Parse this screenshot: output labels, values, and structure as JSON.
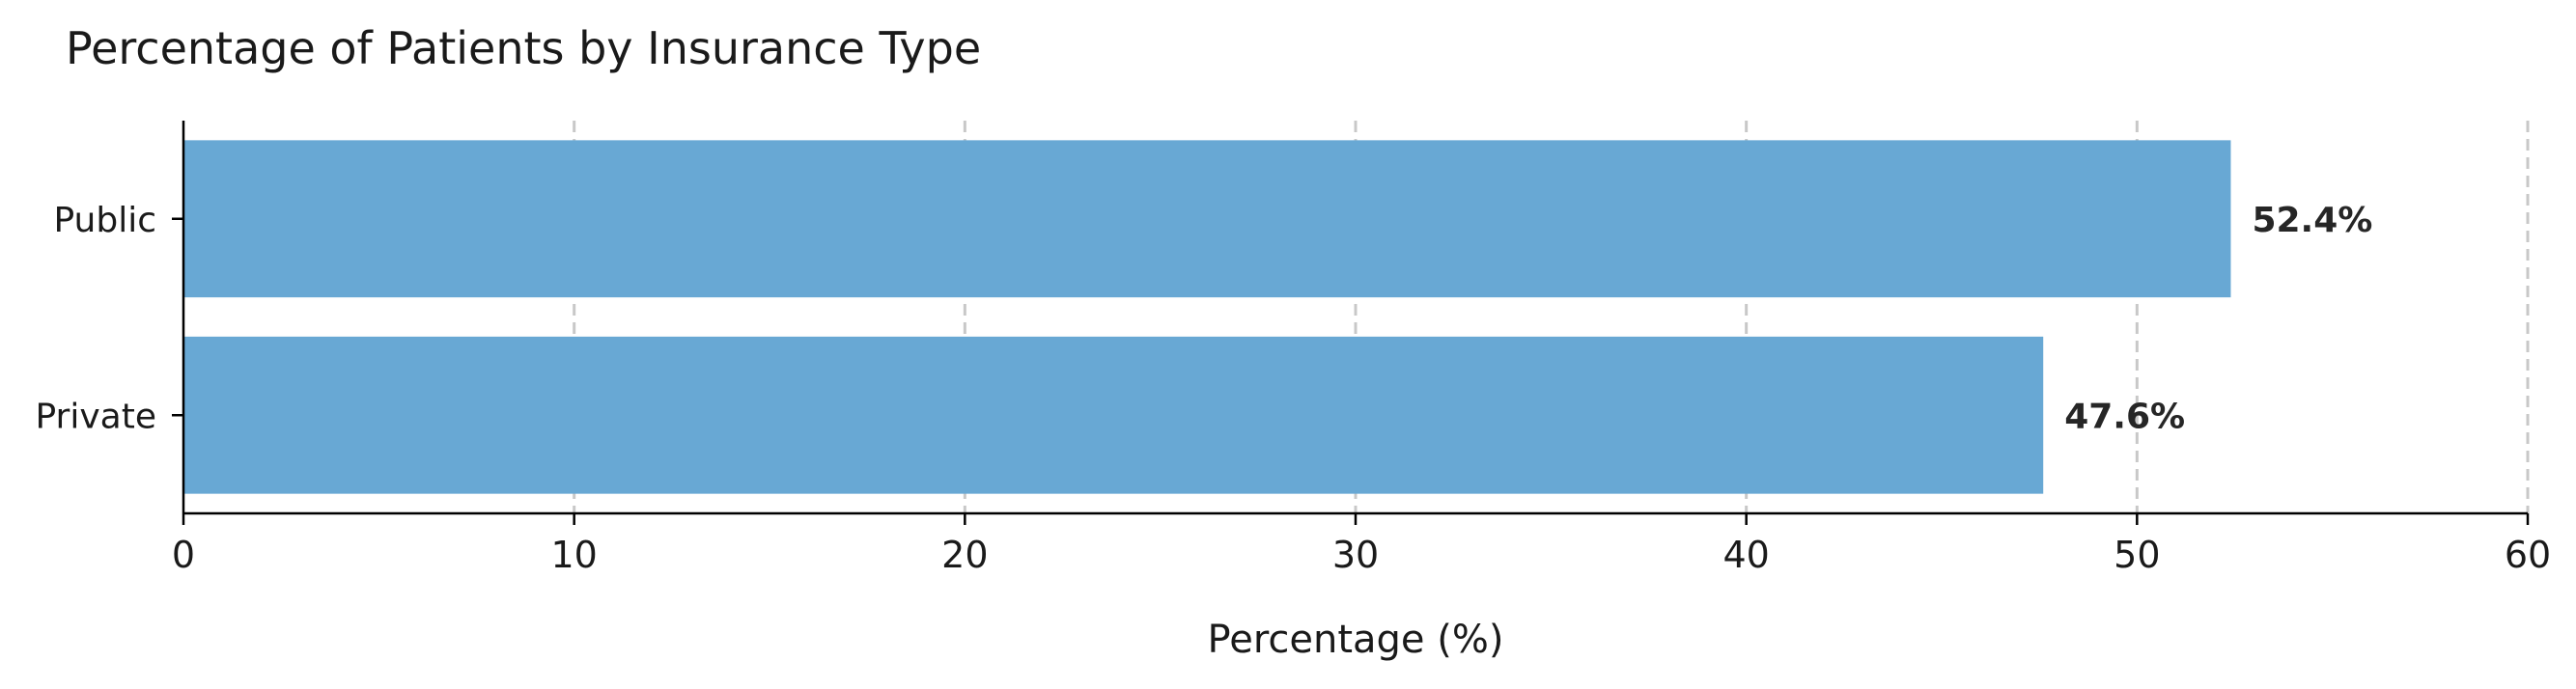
{
  "chart_data": {
    "type": "bar",
    "orientation": "horizontal",
    "title": "Percentage of Patients by Insurance Type",
    "xlabel": "Percentage (%)",
    "ylabel": "",
    "categories": [
      "Public",
      "Private"
    ],
    "values": [
      52.4,
      47.6
    ],
    "data_labels": [
      "52.4%",
      "47.6%"
    ],
    "xlim": [
      0,
      60
    ],
    "x_ticks": [
      0,
      10,
      20,
      30,
      40,
      50,
      60
    ],
    "x_tick_labels": [
      "0",
      "10",
      "20",
      "30",
      "40",
      "50",
      "60"
    ],
    "grid": {
      "x": true,
      "y": false,
      "style": "dashed"
    },
    "legend": "none",
    "bar_color": "#68a8d4",
    "grid_color": "#c8c8c8",
    "axis_color": "#000000"
  }
}
